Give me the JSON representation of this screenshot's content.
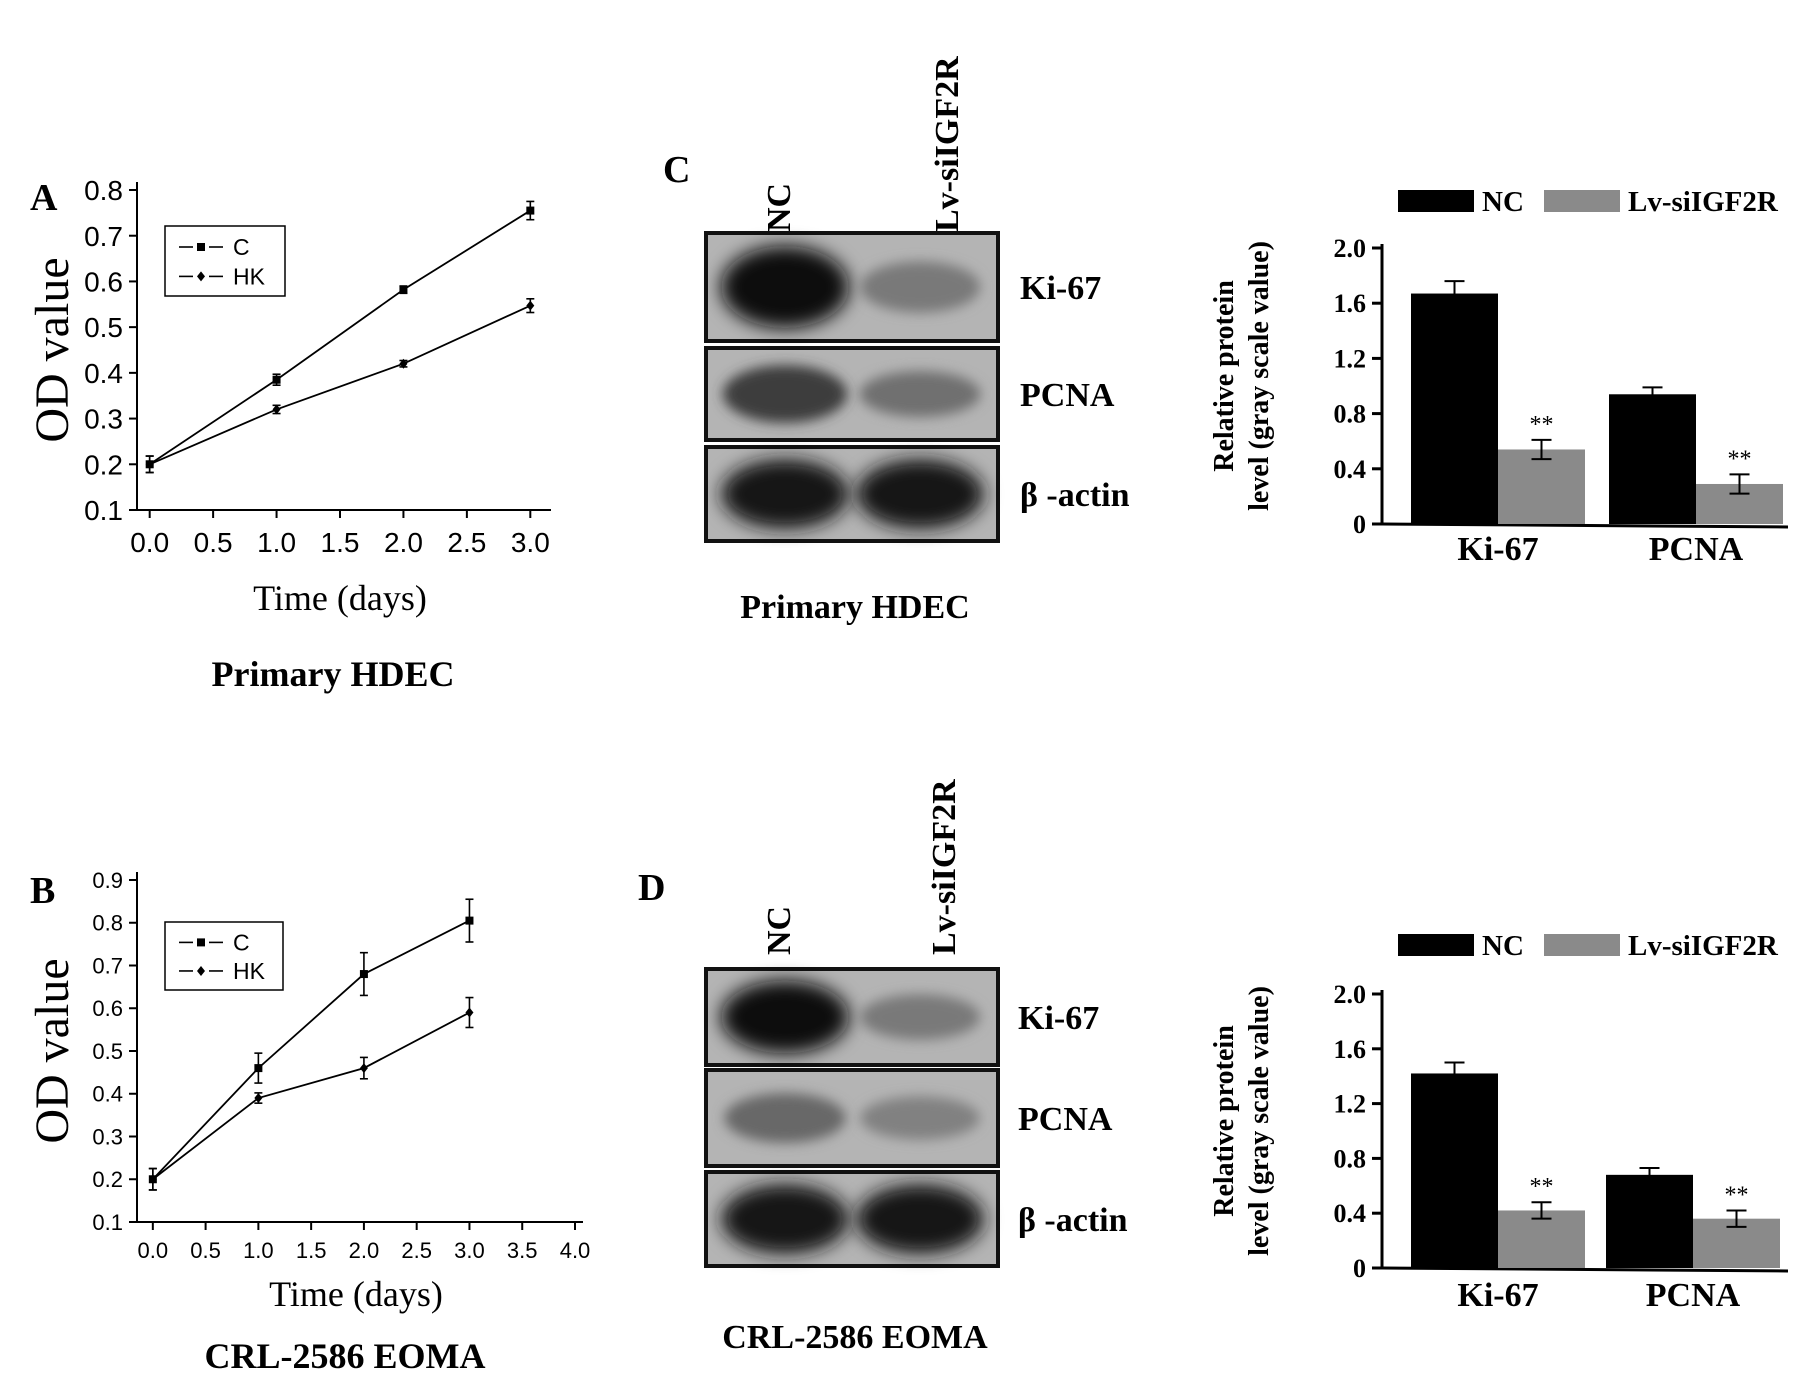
{
  "chart_data": [
    {
      "panel": "A",
      "type": "line",
      "caption": "Primary HDEC",
      "xlabel": "Time (days)",
      "ylabel": "OD value",
      "xlim": [
        -0.1,
        3.1
      ],
      "ylim": [
        0.1,
        0.8
      ],
      "xticks": [
        "0.0",
        "0.5",
        "1.0",
        "1.5",
        "2.0",
        "2.5",
        "3.0"
      ],
      "yticks": [
        "0.1",
        "0.2",
        "0.3",
        "0.4",
        "0.5",
        "0.6",
        "0.7",
        "0.8"
      ],
      "legend_position": "top-left",
      "series": [
        {
          "name": "C",
          "marker": "square",
          "x": [
            0,
            1,
            2,
            3
          ],
          "y": [
            0.2,
            0.385,
            0.582,
            0.755
          ],
          "err": [
            0.018,
            0.012,
            0.008,
            0.02
          ]
        },
        {
          "name": "HK",
          "marker": "diamond",
          "x": [
            0,
            1,
            2,
            3
          ],
          "y": [
            0.2,
            0.32,
            0.42,
            0.547
          ],
          "err": [
            0.018,
            0.009,
            0.007,
            0.015
          ]
        }
      ]
    },
    {
      "panel": "B",
      "type": "line",
      "caption": "CRL-2586 EOMA",
      "xlabel": "Time (days)",
      "ylabel": "OD value",
      "xlim": [
        -0.15,
        4.0
      ],
      "ylim": [
        0.1,
        0.9
      ],
      "xticks": [
        "0.0",
        "0.5",
        "1.0",
        "1.5",
        "2.0",
        "2.5",
        "3.0",
        "3.5",
        "4.0"
      ],
      "yticks": [
        "0.1",
        "0.2",
        "0.3",
        "0.4",
        "0.5",
        "0.6",
        "0.7",
        "0.8",
        "0.9"
      ],
      "legend_position": "top-left",
      "series": [
        {
          "name": "C",
          "marker": "square",
          "x": [
            0,
            1,
            2,
            3
          ],
          "y": [
            0.2,
            0.46,
            0.68,
            0.805
          ],
          "err": [
            0.025,
            0.035,
            0.05,
            0.05
          ]
        },
        {
          "name": "HK",
          "marker": "diamond",
          "x": [
            0,
            1,
            2,
            3
          ],
          "y": [
            0.2,
            0.39,
            0.46,
            0.59
          ],
          "err": [
            0.025,
            0.012,
            0.025,
            0.035
          ]
        }
      ]
    },
    {
      "panel": "C",
      "type": "bar",
      "caption": "Primary HDEC",
      "ylabel_line1": "Relative protein",
      "ylabel_line2": "level (gray scale value)",
      "categories": [
        "Ki-67",
        "PCNA"
      ],
      "ylim": [
        0,
        2.0
      ],
      "yticks": [
        "0",
        "0.4",
        "0.8",
        "1.2",
        "1.6",
        "2.0"
      ],
      "legend_position": "top",
      "series": [
        {
          "name": "NC",
          "color": "#000000",
          "values": [
            1.67,
            0.94
          ],
          "err": [
            0.09,
            0.05
          ]
        },
        {
          "name": "Lv-siIGF2R",
          "color": "#8a8a8a",
          "values": [
            0.54,
            0.29
          ],
          "err": [
            0.07,
            0.07
          ]
        }
      ],
      "annotations": [
        "**",
        "**"
      ]
    },
    {
      "panel": "D",
      "type": "bar",
      "caption": "CRL-2586 EOMA",
      "ylabel_line1": "Relative protein",
      "ylabel_line2": "level (gray scale value)",
      "categories": [
        "Ki-67",
        "PCNA"
      ],
      "ylim": [
        0,
        2.0
      ],
      "yticks": [
        "0",
        "0.4",
        "0.8",
        "1.2",
        "1.6",
        "2.0"
      ],
      "legend_position": "top",
      "series": [
        {
          "name": "NC",
          "color": "#000000",
          "values": [
            1.42,
            0.68
          ],
          "err": [
            0.08,
            0.05
          ]
        },
        {
          "name": "Lv-siIGF2R",
          "color": "#8a8a8a",
          "values": [
            0.42,
            0.36
          ],
          "err": [
            0.06,
            0.06
          ]
        }
      ],
      "annotations": [
        "**",
        "**"
      ]
    }
  ],
  "blots": [
    {
      "panel": "C",
      "caption": "Primary HDEC",
      "lane_labels": [
        "NC",
        "Lv-siIGF2R"
      ],
      "rows": [
        {
          "label": "Ki-67",
          "band_levels": [
            1.0,
            0.35
          ]
        },
        {
          "label": "PCNA",
          "band_levels": [
            0.7,
            0.4
          ]
        },
        {
          "label": "β -actin",
          "band_levels": [
            0.95,
            0.95
          ]
        }
      ]
    },
    {
      "panel": "D",
      "caption": "CRL-2586 EOMA",
      "lane_labels": [
        "NC",
        "Lv-siIGF2R"
      ],
      "rows": [
        {
          "label": "Ki-67",
          "band_levels": [
            1.0,
            0.35
          ]
        },
        {
          "label": "PCNA",
          "band_levels": [
            0.45,
            0.3
          ]
        },
        {
          "label": "β -actin",
          "band_levels": [
            0.95,
            0.95
          ]
        }
      ]
    }
  ]
}
